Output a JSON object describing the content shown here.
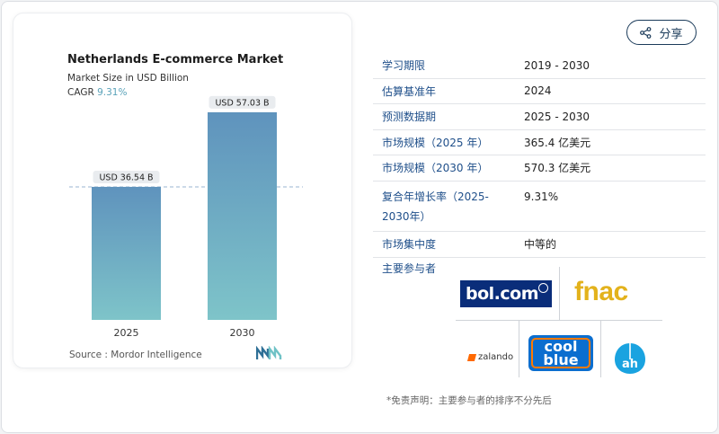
{
  "chart": {
    "title": "Netherlands E-commerce Market",
    "subtitle": "Market Size in USD Billion",
    "cagr_label": "CAGR",
    "cagr_value": "9.31%",
    "source": "Source :  Mordor Intelligence",
    "bar_labels": [
      "USD 36.54 B",
      "USD 57.03 B"
    ]
  },
  "chart_data": {
    "type": "bar",
    "categories": [
      "2025",
      "2030"
    ],
    "values": [
      36.54,
      57.03
    ],
    "title": "Netherlands E-commerce Market",
    "ylabel": "Market Size in USD Billion",
    "ylim": [
      0,
      60
    ],
    "grid": false,
    "reference_line_value": 36.54
  },
  "share": {
    "label": "分享",
    "icon": "share-icon"
  },
  "info": [
    {
      "key": "学习期限",
      "value": "2019 - 2030"
    },
    {
      "key": "估算基准年",
      "value": "2024"
    },
    {
      "key": "预测数据期",
      "value": "2025 - 2030"
    },
    {
      "key": "市场规模（2025 年）",
      "value": "365.4 亿美元"
    },
    {
      "key": "市场规模（2030 年）",
      "value": "570.3 亿美元"
    },
    {
      "key": "复合年增长率（2025-2030年）",
      "key_line1": "复合年增长率（2025-",
      "key_line2": "2030年）",
      "value": "9.31%"
    },
    {
      "key": "市场集中度",
      "value": "中等的"
    }
  ],
  "players": {
    "label": "主要参与者",
    "logos": {
      "bol": "bol.com",
      "fnac": "fnac",
      "zalando": "zalando",
      "coolblue_1": "cool",
      "coolblue_2": "blue"
    }
  },
  "disclaimer": "*免责声明：主要参与者的排序不分先后",
  "colors": {
    "bar_top": "#5f93bd",
    "bar_bottom": "#7ec4c9",
    "accent_text": "#1f4f8a",
    "cagr": "#5aa2b9"
  }
}
